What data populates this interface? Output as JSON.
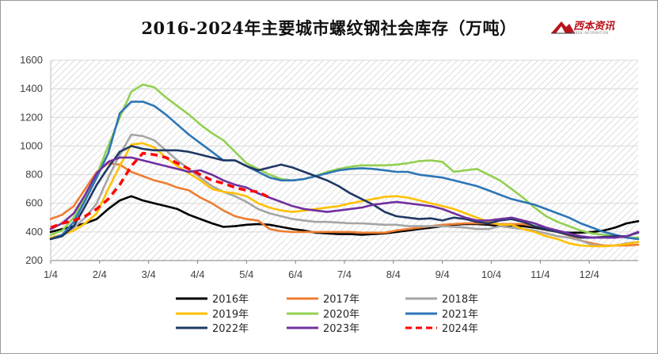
{
  "chart_data": {
    "type": "line",
    "title": "2016-2024年主要城市螺纹钢社会库存（万吨）",
    "brand": "西本资讯",
    "brand_sub": "XIBEN INFORMATION",
    "xlabel": "",
    "ylabel": "",
    "x_ticks": [
      "1/4",
      "2/4",
      "3/4",
      "4/4",
      "5/4",
      "6/4",
      "7/4",
      "8/4",
      "9/4",
      "10/4",
      "11/4",
      "12/4"
    ],
    "y_ticks": [
      200,
      400,
      600,
      800,
      1000,
      1200,
      1400,
      1600
    ],
    "ylim": [
      200,
      1600
    ],
    "x_week_range": [
      1,
      52
    ],
    "grid": true,
    "legend_position": "bottom",
    "series": [
      {
        "name": "2016年",
        "color": "#000000",
        "dashed": false,
        "x": [
          1,
          2,
          3,
          4,
          5,
          6,
          7,
          8,
          9,
          10,
          11,
          12,
          13,
          14,
          15,
          16,
          17,
          18,
          19,
          20,
          21,
          22,
          23,
          24,
          25,
          26,
          27,
          28,
          29,
          30,
          31,
          32,
          33,
          34,
          35,
          36,
          37,
          38,
          39,
          40,
          41,
          42,
          43,
          44,
          45,
          46,
          47,
          48,
          49,
          50,
          51,
          52
        ],
        "values": [
          400,
          420,
          440,
          460,
          490,
          560,
          620,
          650,
          620,
          600,
          580,
          560,
          520,
          490,
          460,
          435,
          440,
          450,
          455,
          450,
          435,
          420,
          410,
          395,
          390,
          385,
          385,
          380,
          385,
          390,
          400,
          410,
          420,
          430,
          440,
          450,
          455,
          455,
          450,
          440,
          445,
          440,
          430,
          415,
          400,
          395,
          395,
          400,
          410,
          430,
          460,
          475
        ]
      },
      {
        "name": "2017年",
        "color": "#ed7d31",
        "dashed": false,
        "x": [
          1,
          2,
          3,
          4,
          5,
          6,
          7,
          8,
          9,
          10,
          11,
          12,
          13,
          14,
          15,
          16,
          17,
          18,
          19,
          20,
          21,
          22,
          23,
          24,
          25,
          26,
          27,
          28,
          29,
          30,
          31,
          32,
          33,
          34,
          35,
          36,
          37,
          38,
          39,
          40,
          41,
          42,
          43,
          44,
          45,
          46,
          47,
          48,
          49,
          50,
          51,
          52
        ],
        "values": [
          490,
          520,
          580,
          700,
          820,
          880,
          870,
          820,
          790,
          760,
          740,
          710,
          690,
          640,
          600,
          550,
          510,
          490,
          480,
          420,
          405,
          400,
          400,
          400,
          400,
          400,
          400,
          395,
          395,
          395,
          410,
          420,
          430,
          440,
          450,
          455,
          460,
          460,
          460,
          455,
          455,
          455,
          440,
          420,
          400,
          375,
          340,
          320,
          305,
          305,
          305,
          310
        ]
      },
      {
        "name": "2018年",
        "color": "#a5a5a5",
        "dashed": false,
        "x": [
          1,
          2,
          3,
          4,
          5,
          6,
          7,
          8,
          9,
          10,
          11,
          12,
          13,
          14,
          15,
          16,
          17,
          18,
          19,
          20,
          21,
          22,
          23,
          24,
          25,
          26,
          27,
          28,
          29,
          30,
          31,
          32,
          33,
          34,
          35,
          36,
          37,
          38,
          39,
          40,
          41,
          42,
          43,
          44,
          45,
          46,
          47,
          48,
          49,
          50,
          51,
          52
        ],
        "values": [
          360,
          380,
          430,
          500,
          600,
          780,
          940,
          1080,
          1070,
          1040,
          970,
          900,
          840,
          780,
          720,
          680,
          650,
          610,
          560,
          530,
          510,
          490,
          480,
          470,
          470,
          465,
          460,
          460,
          455,
          450,
          450,
          440,
          440,
          440,
          440,
          435,
          430,
          420,
          420,
          440,
          430,
          420,
          410,
          390,
          370,
          360,
          340,
          310,
          300,
          305,
          320,
          330
        ]
      },
      {
        "name": "2019年",
        "color": "#ffc000",
        "dashed": false,
        "x": [
          1,
          2,
          3,
          4,
          5,
          6,
          7,
          8,
          9,
          10,
          11,
          12,
          13,
          14,
          15,
          16,
          17,
          18,
          19,
          20,
          21,
          22,
          23,
          24,
          25,
          26,
          27,
          28,
          29,
          30,
          31,
          32,
          33,
          34,
          35,
          36,
          37,
          38,
          39,
          40,
          41,
          42,
          43,
          44,
          45,
          46,
          47,
          48,
          49,
          50,
          51,
          52
        ],
        "values": [
          360,
          380,
          410,
          460,
          530,
          700,
          860,
          1010,
          1020,
          990,
          920,
          860,
          810,
          760,
          700,
          680,
          670,
          650,
          600,
          570,
          550,
          540,
          550,
          560,
          570,
          580,
          600,
          615,
          630,
          645,
          650,
          640,
          620,
          600,
          580,
          560,
          530,
          500,
          470,
          450,
          450,
          420,
          400,
          370,
          350,
          320,
          305,
          300,
          300,
          305,
          315,
          330
        ]
      },
      {
        "name": "2020年",
        "color": "#92d050",
        "dashed": false,
        "x": [
          1,
          2,
          3,
          4,
          5,
          6,
          7,
          8,
          9,
          10,
          11,
          12,
          13,
          14,
          15,
          16,
          17,
          18,
          19,
          20,
          21,
          22,
          23,
          24,
          25,
          26,
          27,
          28,
          29,
          30,
          31,
          32,
          33,
          34,
          35,
          36,
          37,
          38,
          39,
          40,
          41,
          42,
          43,
          44,
          45,
          46,
          47,
          48,
          49,
          50,
          51,
          52
        ],
        "values": [
          380,
          410,
          500,
          640,
          800,
          1000,
          1200,
          1380,
          1430,
          1410,
          1340,
          1280,
          1220,
          1150,
          1090,
          1040,
          960,
          880,
          840,
          800,
          770,
          760,
          770,
          790,
          820,
          840,
          855,
          865,
          865,
          865,
          870,
          880,
          895,
          900,
          890,
          820,
          830,
          840,
          800,
          760,
          700,
          640,
          570,
          510,
          470,
          440,
          410,
          390,
          380,
          370,
          360,
          360
        ]
      },
      {
        "name": "2021年",
        "color": "#2e75b6",
        "dashed": false,
        "x": [
          1,
          2,
          3,
          4,
          5,
          6,
          7,
          8,
          9,
          10,
          11,
          12,
          13,
          14,
          15,
          16,
          17,
          18,
          19,
          20,
          21,
          22,
          23,
          24,
          25,
          26,
          27,
          28,
          29,
          30,
          31,
          32,
          33,
          34,
          35,
          36,
          37,
          38,
          39,
          40,
          41,
          42,
          43,
          44,
          45,
          46,
          47,
          48,
          49,
          50,
          51,
          52
        ],
        "values": [
          350,
          380,
          470,
          620,
          780,
          950,
          1230,
          1310,
          1310,
          1280,
          1220,
          1150,
          1080,
          1020,
          960,
          900,
          900,
          860,
          820,
          780,
          760,
          760,
          770,
          790,
          810,
          830,
          840,
          845,
          840,
          830,
          820,
          820,
          800,
          790,
          780,
          760,
          740,
          720,
          690,
          660,
          630,
          610,
          590,
          560,
          530,
          500,
          460,
          430,
          400,
          380,
          360,
          350
        ]
      },
      {
        "name": "2022年",
        "color": "#203864",
        "dashed": false,
        "x": [
          1,
          2,
          3,
          4,
          5,
          6,
          7,
          8,
          9,
          10,
          11,
          12,
          13,
          14,
          15,
          16,
          17,
          18,
          19,
          20,
          21,
          22,
          23,
          24,
          25,
          26,
          27,
          28,
          29,
          30,
          31,
          32,
          33,
          34,
          35,
          36,
          37,
          38,
          39,
          40,
          41,
          42,
          43,
          44,
          45,
          46,
          47,
          48,
          49,
          50,
          51,
          52
        ],
        "values": [
          350,
          370,
          440,
          580,
          730,
          850,
          960,
          1000,
          980,
          970,
          970,
          970,
          960,
          940,
          920,
          900,
          900,
          860,
          830,
          850,
          870,
          850,
          820,
          790,
          760,
          720,
          670,
          630,
          590,
          540,
          510,
          500,
          490,
          495,
          480,
          500,
          490,
          470,
          460,
          480,
          490,
          470,
          440,
          420,
          400,
          380,
          360,
          360,
          365,
          370,
          370,
          395
        ]
      },
      {
        "name": "2023年",
        "color": "#7030a0",
        "dashed": false,
        "x": [
          1,
          2,
          3,
          4,
          5,
          6,
          7,
          8,
          9,
          10,
          11,
          12,
          13,
          14,
          15,
          16,
          17,
          18,
          19,
          20,
          21,
          22,
          23,
          24,
          25,
          26,
          27,
          28,
          29,
          30,
          31,
          32,
          33,
          34,
          35,
          36,
          37,
          38,
          39,
          40,
          41,
          42,
          43,
          44,
          45,
          46,
          47,
          48,
          49,
          50,
          51,
          52
        ],
        "values": [
          420,
          460,
          530,
          660,
          810,
          890,
          920,
          920,
          900,
          880,
          860,
          840,
          820,
          830,
          800,
          760,
          730,
          710,
          670,
          640,
          610,
          580,
          560,
          550,
          540,
          550,
          560,
          570,
          590,
          600,
          610,
          600,
          590,
          580,
          560,
          530,
          500,
          480,
          480,
          490,
          500,
          480,
          460,
          430,
          410,
          390,
          370,
          360,
          360,
          360,
          370,
          400
        ]
      },
      {
        "name": "2024年",
        "color": "#ff0000",
        "dashed": true,
        "x": [
          1,
          2,
          3,
          4,
          5,
          6,
          7,
          8,
          9,
          10,
          11,
          12,
          13,
          14,
          15,
          16,
          17,
          18,
          19,
          20
        ],
        "values": [
          430,
          460,
          480,
          510,
          560,
          630,
          730,
          860,
          950,
          940,
          920,
          880,
          840,
          800,
          760,
          740,
          710,
          690,
          680,
          640
        ]
      }
    ]
  }
}
